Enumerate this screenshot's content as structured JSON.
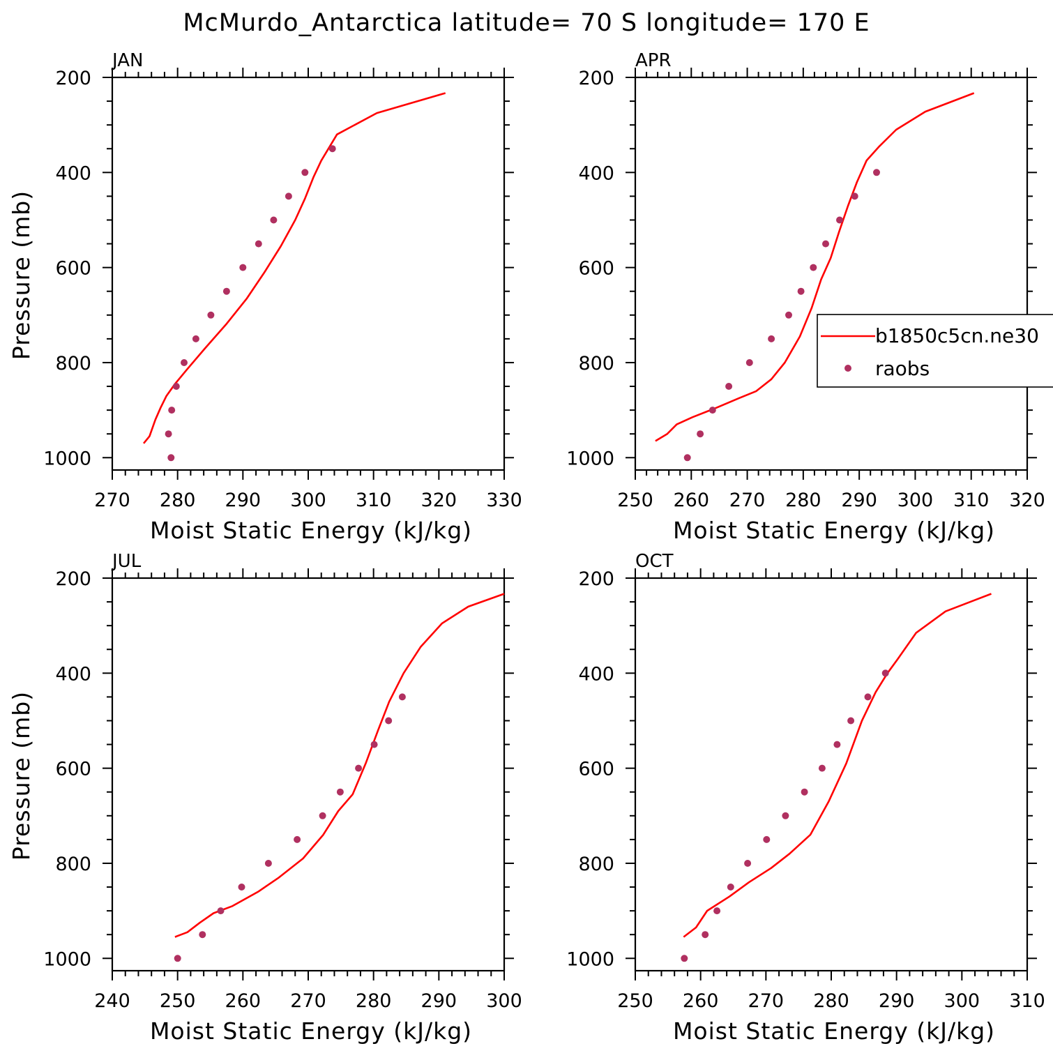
{
  "figure": {
    "title": "McMurdo_Antarctica  latitude= 70 S longitude= 170 E"
  },
  "legend": {
    "entries": [
      {
        "label": "b1850c5cn.ne30",
        "style": "line",
        "color": "#ff0000"
      },
      {
        "label": "raobs",
        "style": "marker",
        "color": "#b03060"
      }
    ]
  },
  "chart_data": [
    {
      "type": "line",
      "panel": "JAN",
      "xlabel": "Moist Static Energy (kJ/kg)",
      "ylabel": "Pressure (mb)",
      "xlim": [
        270,
        330
      ],
      "ylim": [
        200,
        1000
      ],
      "xticks": [
        270,
        280,
        290,
        300,
        310,
        320,
        330
      ],
      "yticks": [
        200,
        400,
        600,
        800,
        1000
      ],
      "y_inverted": true,
      "series": [
        {
          "name": "b1850c5cn.ne30",
          "kind": "line",
          "color": "#ff0000",
          "points": [
            [
              274.8,
              970
            ],
            [
              275.7,
              955
            ],
            [
              276.6,
              920
            ],
            [
              277.4,
              895
            ],
            [
              278.3,
              870
            ],
            [
              279.6,
              845
            ],
            [
              281.4,
              815
            ],
            [
              284.2,
              770
            ],
            [
              287.4,
              720
            ],
            [
              290.6,
              665
            ],
            [
              293.3,
              610
            ],
            [
              295.8,
              555
            ],
            [
              298.0,
              500
            ],
            [
              299.5,
              455
            ],
            [
              300.8,
              410
            ],
            [
              302.0,
              375
            ],
            [
              304.4,
              320
            ],
            [
              310.5,
              275
            ],
            [
              321.0,
              233
            ]
          ]
        },
        {
          "name": "raobs",
          "kind": "marker",
          "color": "#b03060",
          "points": [
            [
              279.0,
              1000
            ],
            [
              278.6,
              950
            ],
            [
              279.1,
              900
            ],
            [
              279.8,
              850
            ],
            [
              281.0,
              800
            ],
            [
              282.8,
              750
            ],
            [
              285.1,
              700
            ],
            [
              287.5,
              650
            ],
            [
              290.0,
              600
            ],
            [
              292.4,
              550
            ],
            [
              294.7,
              500
            ],
            [
              297.0,
              450
            ],
            [
              299.5,
              400
            ],
            [
              303.7,
              350
            ]
          ]
        }
      ]
    },
    {
      "type": "line",
      "panel": "APR",
      "xlabel": "Moist Static Energy (kJ/kg)",
      "ylabel": "",
      "xlim": [
        250,
        320
      ],
      "ylim": [
        200,
        1000
      ],
      "xticks": [
        250,
        260,
        270,
        280,
        290,
        300,
        310,
        320
      ],
      "yticks": [
        200,
        400,
        600,
        800,
        1000
      ],
      "y_inverted": true,
      "series": [
        {
          "name": "b1850c5cn.ne30",
          "kind": "line",
          "color": "#ff0000",
          "points": [
            [
              253.6,
              965
            ],
            [
              255.7,
              950
            ],
            [
              257.4,
              930
            ],
            [
              260.2,
              915
            ],
            [
              264.5,
              895
            ],
            [
              268.5,
              875
            ],
            [
              271.6,
              860
            ],
            [
              274.3,
              835
            ],
            [
              276.7,
              800
            ],
            [
              279.4,
              745
            ],
            [
              281.5,
              685
            ],
            [
              283.2,
              625
            ],
            [
              284.9,
              580
            ],
            [
              286.4,
              525
            ],
            [
              288.0,
              470
            ],
            [
              289.6,
              420
            ],
            [
              291.3,
              375
            ],
            [
              293.6,
              345
            ],
            [
              296.6,
              310
            ],
            [
              301.8,
              272
            ],
            [
              310.5,
              233
            ]
          ]
        },
        {
          "name": "raobs",
          "kind": "marker",
          "color": "#b03060",
          "points": [
            [
              259.3,
              1000
            ],
            [
              261.6,
              950
            ],
            [
              263.8,
              900
            ],
            [
              266.7,
              850
            ],
            [
              270.4,
              800
            ],
            [
              274.3,
              750
            ],
            [
              277.4,
              700
            ],
            [
              279.6,
              650
            ],
            [
              281.8,
              600
            ],
            [
              284.0,
              550
            ],
            [
              286.5,
              500
            ],
            [
              289.2,
              450
            ],
            [
              293.1,
              400
            ]
          ]
        }
      ]
    },
    {
      "type": "line",
      "panel": "JUL",
      "xlabel": "Moist Static Energy (kJ/kg)",
      "ylabel": "Pressure (mb)",
      "xlim": [
        240,
        300
      ],
      "ylim": [
        200,
        1000
      ],
      "xticks": [
        240,
        250,
        260,
        270,
        280,
        290,
        300
      ],
      "yticks": [
        200,
        400,
        600,
        800,
        1000
      ],
      "y_inverted": true,
      "series": [
        {
          "name": "b1850c5cn.ne30",
          "kind": "line",
          "color": "#ff0000",
          "points": [
            [
              249.6,
              955
            ],
            [
              251.5,
              945
            ],
            [
              253.4,
              925
            ],
            [
              255.5,
              905
            ],
            [
              258.4,
              890
            ],
            [
              262.3,
              860
            ],
            [
              265.5,
              830
            ],
            [
              269.2,
              790
            ],
            [
              272.3,
              740
            ],
            [
              274.6,
              690
            ],
            [
              276.8,
              655
            ],
            [
              278.8,
              590
            ],
            [
              280.7,
              520
            ],
            [
              282.4,
              460
            ],
            [
              284.6,
              400
            ],
            [
              287.2,
              345
            ],
            [
              290.5,
              295
            ],
            [
              294.5,
              260
            ],
            [
              300.0,
              233
            ]
          ]
        },
        {
          "name": "raobs",
          "kind": "marker",
          "color": "#b03060",
          "points": [
            [
              250.0,
              1000
            ],
            [
              253.8,
              950
            ],
            [
              256.6,
              900
            ],
            [
              259.8,
              850
            ],
            [
              263.9,
              800
            ],
            [
              268.3,
              750
            ],
            [
              272.2,
              700
            ],
            [
              274.9,
              650
            ],
            [
              277.7,
              600
            ],
            [
              280.1,
              550
            ],
            [
              282.3,
              500
            ],
            [
              284.4,
              450
            ]
          ]
        }
      ]
    },
    {
      "type": "line",
      "panel": "OCT",
      "xlabel": "Moist Static Energy (kJ/kg)",
      "ylabel": "",
      "xlim": [
        250,
        310
      ],
      "ylim": [
        200,
        1000
      ],
      "xticks": [
        250,
        260,
        270,
        280,
        290,
        300,
        310
      ],
      "yticks": [
        200,
        400,
        600,
        800,
        1000
      ],
      "y_inverted": true,
      "series": [
        {
          "name": "b1850c5cn.ne30",
          "kind": "line",
          "color": "#ff0000",
          "points": [
            [
              257.4,
              955
            ],
            [
              259.3,
              935
            ],
            [
              261.0,
              900
            ],
            [
              264.4,
              870
            ],
            [
              267.4,
              840
            ],
            [
              270.8,
              810
            ],
            [
              273.6,
              780
            ],
            [
              276.8,
              740
            ],
            [
              279.6,
              670
            ],
            [
              282.3,
              590
            ],
            [
              284.7,
              500
            ],
            [
              286.8,
              440
            ],
            [
              288.6,
              400
            ],
            [
              290.2,
              370
            ],
            [
              293.0,
              315
            ],
            [
              297.5,
              270
            ],
            [
              304.5,
              233
            ]
          ]
        },
        {
          "name": "raobs",
          "kind": "marker",
          "color": "#b03060",
          "points": [
            [
              257.5,
              1000
            ],
            [
              260.7,
              950
            ],
            [
              262.5,
              900
            ],
            [
              264.6,
              850
            ],
            [
              267.2,
              800
            ],
            [
              270.1,
              750
            ],
            [
              273.0,
              700
            ],
            [
              275.9,
              650
            ],
            [
              278.6,
              600
            ],
            [
              280.9,
              550
            ],
            [
              283.0,
              500
            ],
            [
              285.6,
              450
            ],
            [
              288.3,
              400
            ]
          ]
        }
      ]
    }
  ]
}
